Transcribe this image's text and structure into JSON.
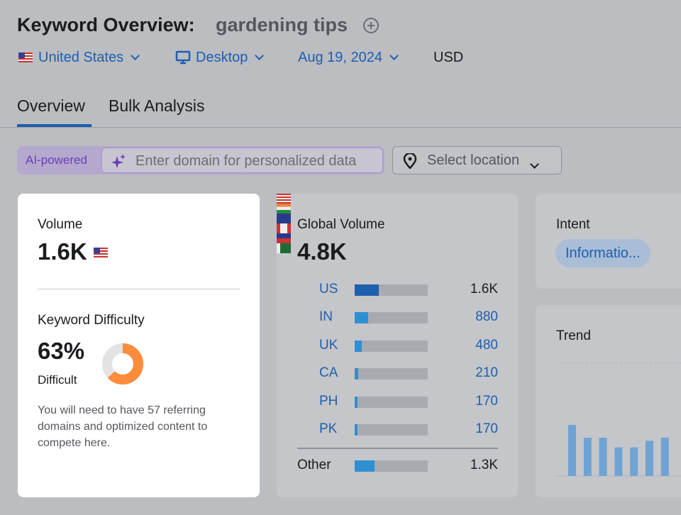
{
  "header": {
    "title": "Keyword Overview:",
    "keyword": "gardening tips",
    "filters": [
      "United States",
      "Desktop",
      "Aug 19, 2024",
      "USD"
    ]
  },
  "tabs": [
    "Overview",
    "Bulk Analysis"
  ],
  "search": {
    "badge": "AI-powered",
    "placeholder": "Enter domain for personalized data",
    "location": "Select location"
  },
  "volume": {
    "label": "Volume",
    "value": "1.6K"
  },
  "difficulty": {
    "label": "Keyword Difficulty",
    "value": 63,
    "value_label": "63%",
    "level": "Difficult",
    "note": "You will need to have 57 referring domains and optimized content to compete here."
  },
  "global": {
    "label": "Global Volume",
    "volume": 4800,
    "volume_label": "4.8K",
    "countries": [
      {
        "code": "US",
        "volume": 1600,
        "volume_label": "1.6K"
      },
      {
        "code": "IN",
        "volume": 880
      },
      {
        "code": "UK",
        "volume": 480
      },
      {
        "code": "CA",
        "volume": 210
      },
      {
        "code": "PH",
        "volume": 170
      },
      {
        "code": "PK",
        "volume": 170
      }
    ],
    "other": {
      "label": "Other",
      "volume": 1300,
      "volume_label": "1.3K"
    }
  },
  "intent": {
    "label": "Intent",
    "value": "Informatio..."
  },
  "trend": {
    "label": "Trend",
    "values": [
      100,
      75,
      75,
      56,
      56,
      69,
      75
    ]
  }
}
